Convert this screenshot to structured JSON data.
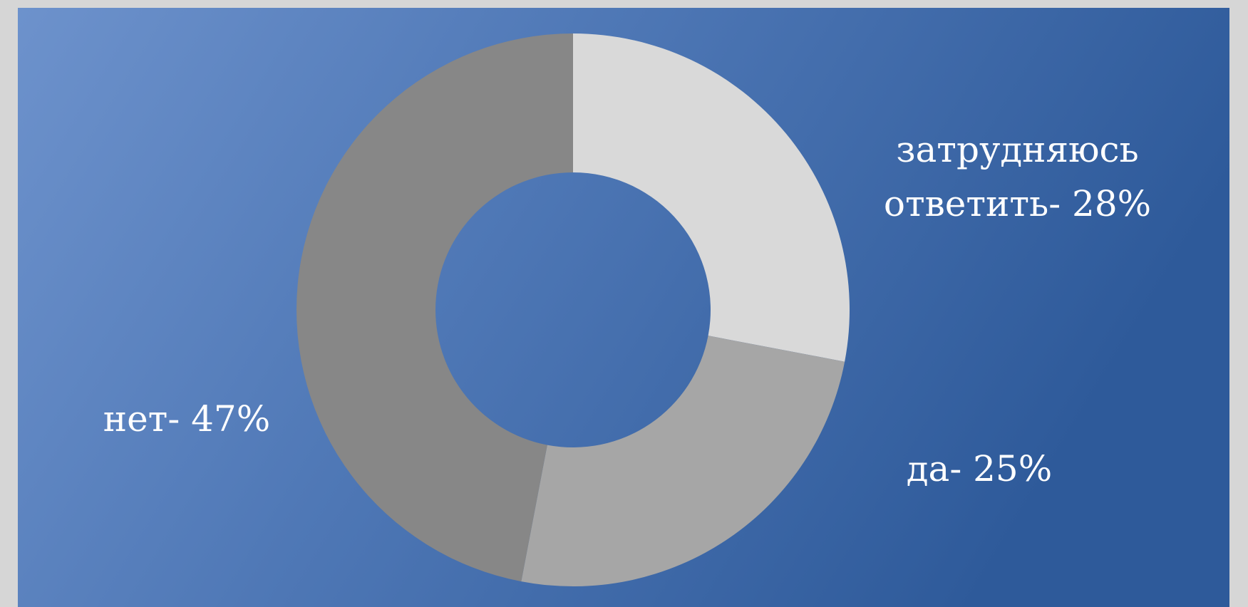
{
  "chart_data": {
    "type": "donut",
    "values": [
      28,
      25,
      47
    ],
    "value_labels": [
      "затрудняюсь ответить- 28%",
      "да- 25%",
      "нет- 47%"
    ],
    "colors": [
      "#d9d9d9",
      "#a6a6a6",
      "#878787"
    ]
  }
}
